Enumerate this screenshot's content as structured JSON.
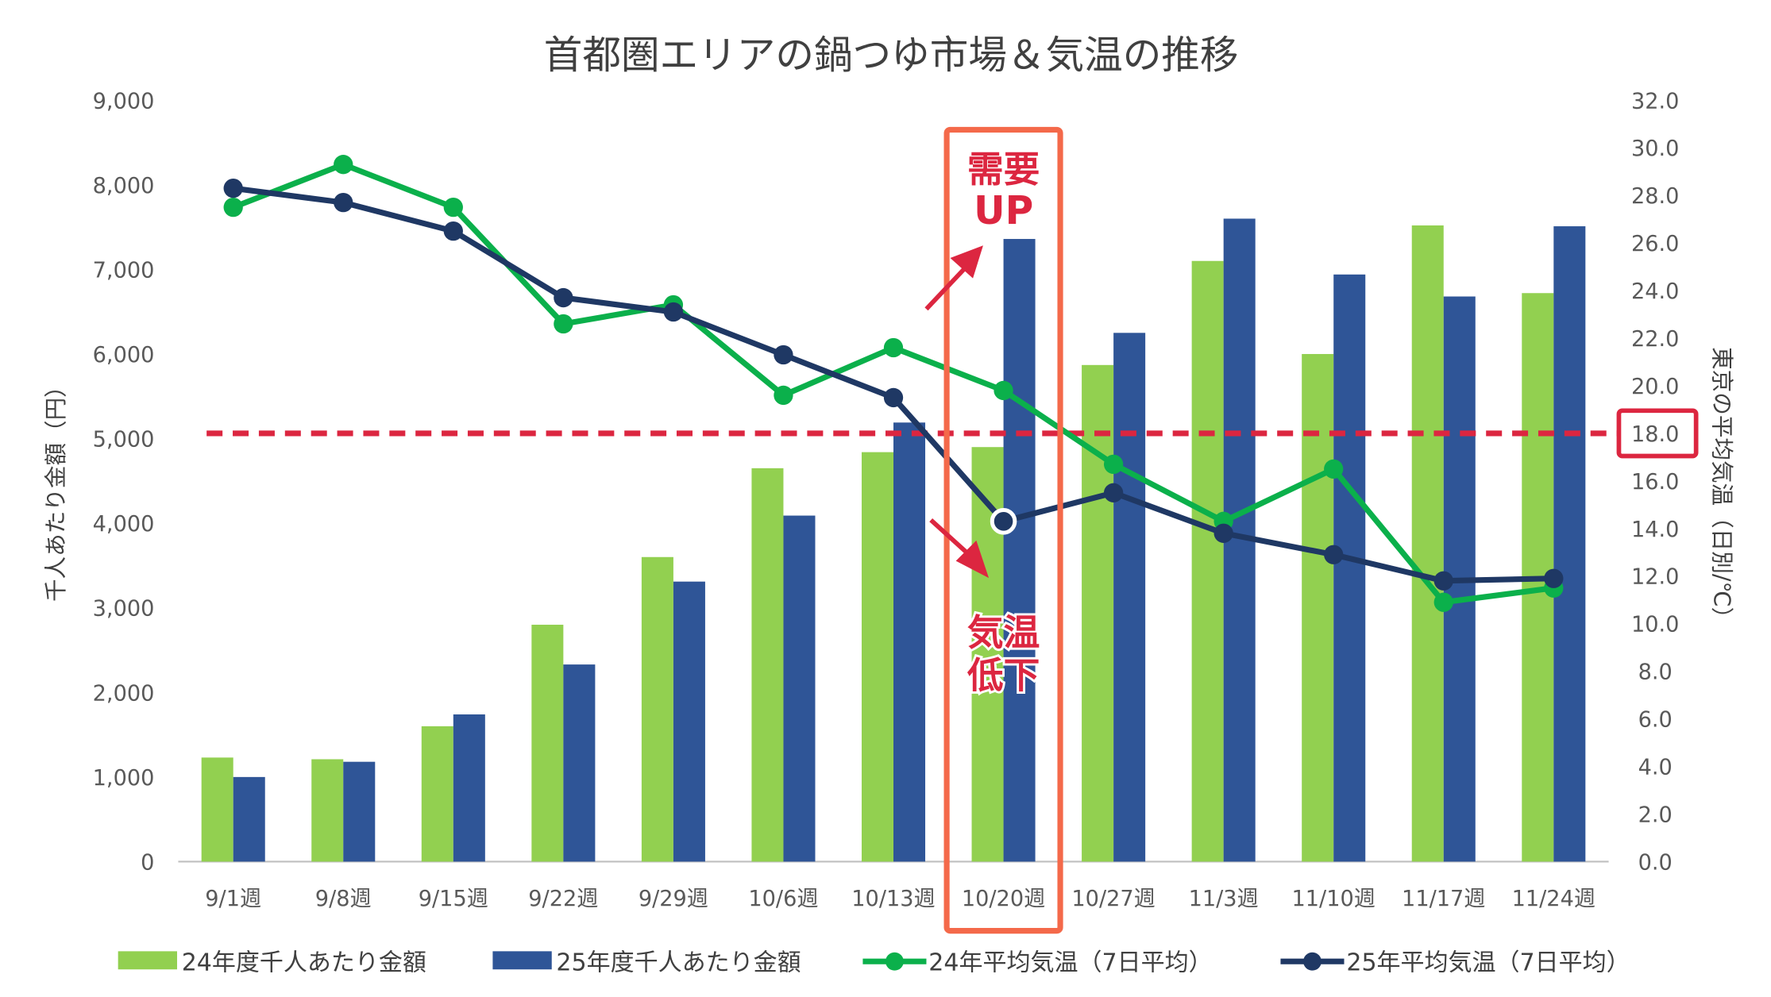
{
  "chart_data": {
    "type": "bar+line",
    "title": "首都圏エリアの鍋つゆ市場＆気温の推移",
    "categories": [
      "9/1週",
      "9/8週",
      "9/15週",
      "9/22週",
      "9/29週",
      "10/6週",
      "10/13週",
      "10/20週",
      "10/27週",
      "11/3週",
      "11/10週",
      "11/17週",
      "11/24週"
    ],
    "ylabel_left": "千人あたり金額（円）",
    "ylabel_right": "東京の平均気温（日別/℃）",
    "ylim_left": [
      0,
      9000
    ],
    "ylim_right": [
      0,
      32
    ],
    "yticks_left": [
      "0",
      "1,000",
      "2,000",
      "3,000",
      "4,000",
      "5,000",
      "6,000",
      "7,000",
      "8,000",
      "9,000"
    ],
    "yticks_right": [
      "0.0",
      "2.0",
      "4.0",
      "6.0",
      "8.0",
      "10.0",
      "12.0",
      "14.0",
      "16.0",
      "18.0",
      "20.0",
      "22.0",
      "24.0",
      "26.0",
      "28.0",
      "30.0",
      "32.0"
    ],
    "grid": false,
    "legend_position": "bottom",
    "series": [
      {
        "name": "24年度千人あたり金額",
        "type": "bar",
        "axis": "left",
        "color": "#92D050",
        "values": [
          1230,
          1210,
          1600,
          2800,
          3600,
          4650,
          4840,
          4900,
          5870,
          7100,
          6000,
          7520,
          6720
        ]
      },
      {
        "name": "25年度千人あたり金額",
        "type": "bar",
        "axis": "left",
        "color": "#2F5597",
        "values": [
          1000,
          1180,
          1740,
          2330,
          3310,
          4090,
          5190,
          7360,
          6250,
          7600,
          6940,
          6680,
          7510
        ]
      },
      {
        "name": "24年平均気温（7日平均）",
        "type": "line",
        "axis": "right",
        "color": "#0BB04B",
        "values": [
          27.5,
          29.3,
          27.5,
          22.6,
          23.4,
          19.6,
          21.6,
          19.8,
          16.7,
          14.3,
          16.5,
          10.9,
          11.5
        ]
      },
      {
        "name": "25年平均気温（7日平均）",
        "type": "line",
        "axis": "right",
        "color": "#1F3864",
        "values": [
          28.3,
          27.7,
          26.5,
          23.7,
          23.1,
          21.3,
          19.5,
          14.3,
          15.5,
          13.8,
          12.9,
          11.8,
          11.9
        ]
      }
    ],
    "reference_line": {
      "axis": "right",
      "value": 18.0,
      "label": "18.0",
      "color": "#DC2640"
    },
    "highlight": {
      "category": "10/20週",
      "color": "#F4694A"
    },
    "annotations": [
      {
        "text_line1": "需要",
        "text_line2": "UP",
        "color": "#DC2640"
      },
      {
        "text_line1": "気温",
        "text_line2": "低下",
        "color": "#DC2640"
      }
    ]
  }
}
